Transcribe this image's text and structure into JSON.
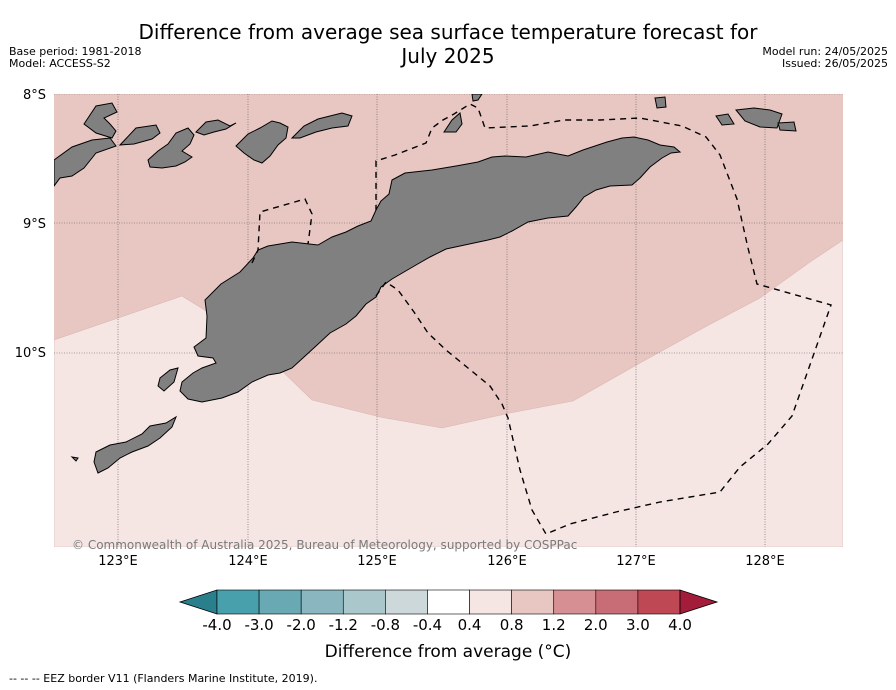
{
  "header": {
    "title_line1": "Difference from average sea surface temperature forecast for",
    "title_line2": "July 2025",
    "base_period": "Base period: 1981-2018",
    "model": "Model: ACCESS-S2",
    "model_run": "Model run: 24/05/2025",
    "issued": "Issued: 26/05/2025"
  },
  "map": {
    "lat_labels": [
      "8°S",
      "9°S",
      "10°S"
    ],
    "lon_labels": [
      "123°E",
      "124°E",
      "125°E",
      "126°E",
      "127°E",
      "128°E"
    ],
    "copyright": "© Commonwealth of Australia 2025, Bureau of Meteorology, supported by COSPPac",
    "colors": {
      "land": "#808080",
      "anomaly_0_8_to_1_2": "#e8c7c2",
      "anomaly_0_4_to_0_8": "#f5e6e4"
    }
  },
  "colorbar": {
    "ticks": [
      "-4.0",
      "-3.0",
      "-2.0",
      "-1.2",
      "-0.8",
      "-0.4",
      "0.4",
      "0.8",
      "1.2",
      "2.0",
      "3.0",
      "4.0"
    ],
    "colors": [
      "#2a7f8c",
      "#48a0ad",
      "#69a9b3",
      "#8ab7bf",
      "#aac8cb",
      "#cdd8da",
      "#ffffff",
      "#f5e6e4",
      "#e8c7c2",
      "#d68f93",
      "#c86c76",
      "#bf4855",
      "#a31c3a"
    ],
    "title": "Difference from average (°C)"
  },
  "legend": {
    "eez_note": "--  --  -- EEZ border V11 (Flanders Marine Institute, 2019)."
  }
}
